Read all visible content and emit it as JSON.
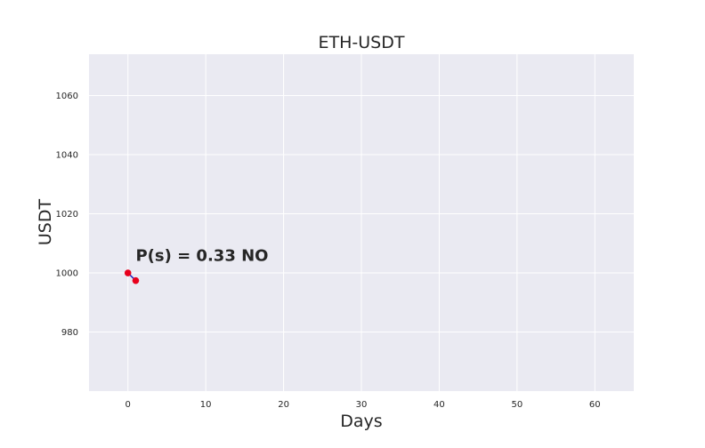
{
  "chart_data": {
    "type": "line",
    "title": "ETH-USDT",
    "xlabel": "Days",
    "ylabel": "USDT",
    "xlim": [
      -5,
      65
    ],
    "ylim": [
      960,
      1074
    ],
    "xticks": [
      0,
      10,
      20,
      30,
      40,
      50,
      60
    ],
    "yticks": [
      980,
      1000,
      1020,
      1040,
      1060
    ],
    "grid": true,
    "series": [
      {
        "x": [
          0,
          1
        ],
        "y": [
          1000,
          997.4
        ],
        "line_color": "#1f1fbf",
        "marker_color": "#e8001c"
      }
    ],
    "annotations": [
      {
        "text": "P(s) = 0.33 NO",
        "x": 1,
        "y": 1004
      }
    ]
  }
}
